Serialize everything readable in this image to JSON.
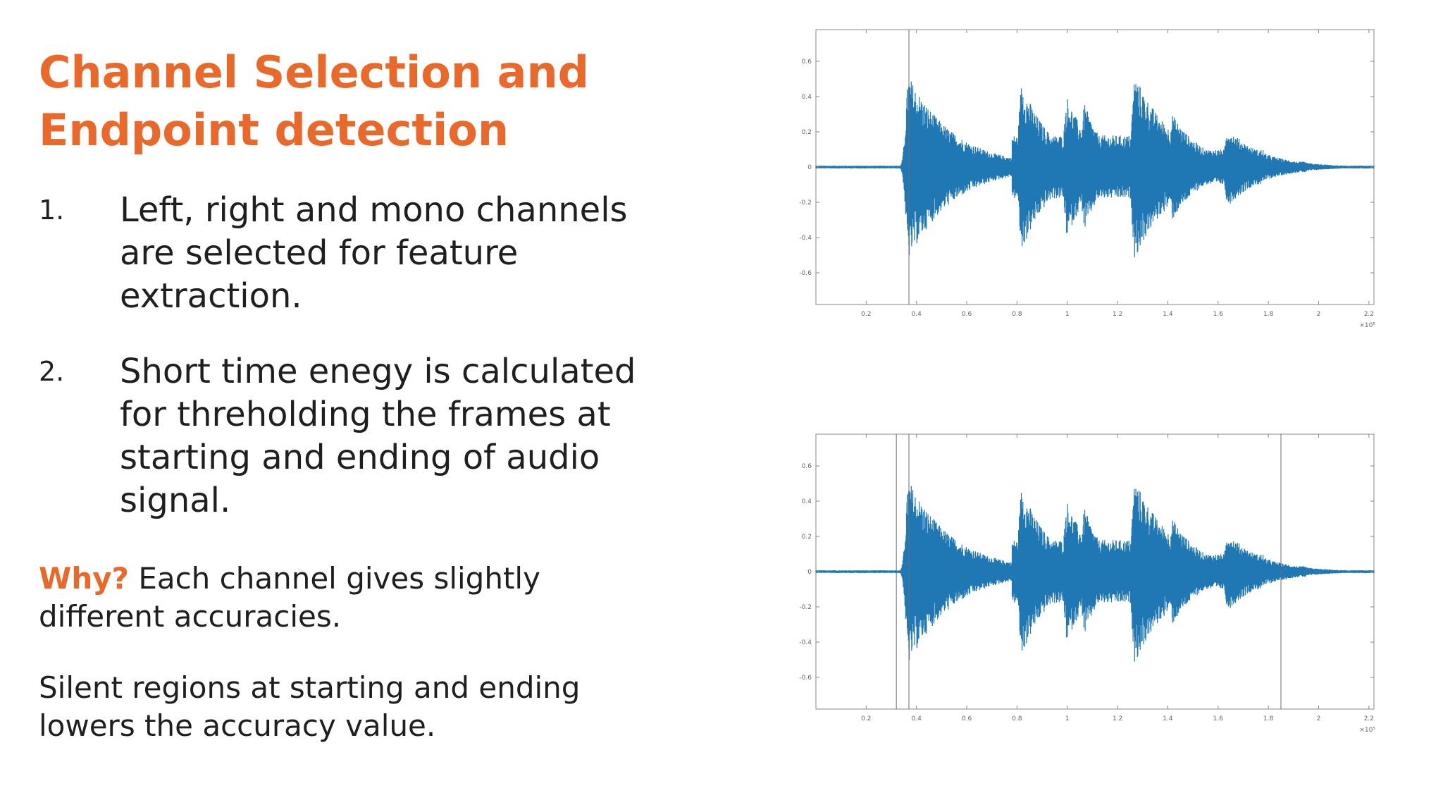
{
  "slide": {
    "title_line1": "Channel Selection and",
    "title_line2": "Endpoint detection",
    "items": [
      {
        "num": "1.",
        "text": "Left, right and mono channels are selected for feature extraction."
      },
      {
        "num": "2.",
        "text": "Short time enegy is calculated for threholding the frames at starting and ending of audio signal."
      }
    ],
    "why_label": "Why?",
    "why_text": " Each channel gives slightly different accuracies.",
    "note": "Silent regions at starting and ending lowers the accuracy value."
  },
  "colors": {
    "accent": "#e8692a",
    "waveform": "#1f77b4",
    "text": "#1f1f1f"
  },
  "chart_data": [
    {
      "type": "line",
      "title": "",
      "xlabel": "",
      "ylabel": "",
      "x_ticks": [
        "0.2",
        "0.4",
        "0.6",
        "0.8",
        "1",
        "1.2",
        "1.4",
        "1.6",
        "1.8",
        "2",
        "2.2"
      ],
      "x_multiplier": "×10⁵",
      "y_ticks": [
        "0.6",
        "0.4",
        "0.2",
        "0",
        "-0.2",
        "-0.4",
        "-0.6"
      ],
      "xlim": [
        0,
        2.22
      ],
      "ylim": [
        -0.78,
        0.78
      ],
      "markers": [
        0.37
      ],
      "grid": false
    },
    {
      "type": "line",
      "title": "",
      "xlabel": "",
      "ylabel": "",
      "x_ticks": [
        "0.2",
        "0.4",
        "0.6",
        "0.8",
        "1",
        "1.2",
        "1.4",
        "1.6",
        "1.8",
        "2",
        "2.2"
      ],
      "x_multiplier": "×10⁵",
      "y_ticks": [
        "0.6",
        "0.4",
        "0.2",
        "0",
        "-0.2",
        "-0.4",
        "-0.6"
      ],
      "xlim": [
        0,
        2.22
      ],
      "ylim": [
        -0.78,
        0.78
      ],
      "markers": [
        0.32,
        0.37,
        1.85
      ],
      "grid": false
    }
  ]
}
